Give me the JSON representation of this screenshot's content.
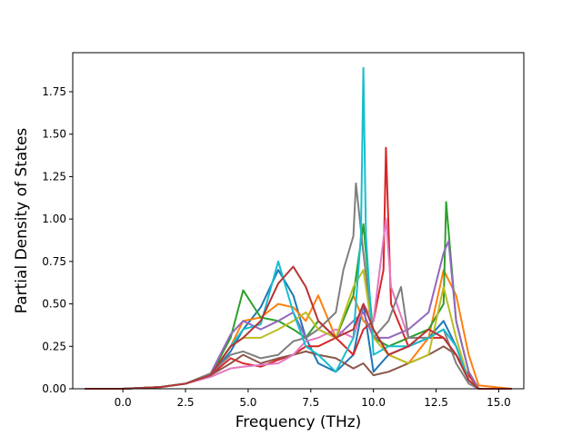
{
  "chart_data": {
    "type": "line",
    "title": "",
    "xlabel": "Frequency (THz)",
    "ylabel": "Partial Density of States",
    "xlim": [
      -2.0,
      16.0
    ],
    "ylim": [
      0.0,
      1.98
    ],
    "xticks": [
      0.0,
      2.5,
      5.0,
      7.5,
      10.0,
      12.5,
      15.0
    ],
    "xtick_labels": [
      "0.0",
      "2.5",
      "5.0",
      "7.5",
      "10.0",
      "12.5",
      "15.0"
    ],
    "yticks": [
      0.0,
      0.25,
      0.5,
      0.75,
      1.0,
      1.25,
      1.5,
      1.75
    ],
    "ytick_labels": [
      "0.00",
      "0.25",
      "0.50",
      "0.75",
      "1.00",
      "1.25",
      "1.50",
      "1.75"
    ],
    "grid": false,
    "legend": "none",
    "series": [
      {
        "color": "#1f77b4",
        "points": [
          [
            -1.5,
            0
          ],
          [
            0,
            0
          ],
          [
            1.5,
            0.01
          ],
          [
            2.5,
            0.03
          ],
          [
            3.5,
            0.08
          ],
          [
            4.3,
            0.22
          ],
          [
            4.8,
            0.35
          ],
          [
            5.5,
            0.48
          ],
          [
            6.2,
            0.7
          ],
          [
            6.8,
            0.55
          ],
          [
            7.3,
            0.3
          ],
          [
            7.8,
            0.15
          ],
          [
            8.5,
            0.1
          ],
          [
            9.2,
            0.2
          ],
          [
            9.6,
            0.5
          ],
          [
            10,
            0.1
          ],
          [
            10.6,
            0.2
          ],
          [
            11.4,
            0.25
          ],
          [
            12.2,
            0.3
          ],
          [
            12.8,
            0.4
          ],
          [
            13.3,
            0.25
          ],
          [
            13.8,
            0.05
          ],
          [
            14.2,
            0
          ],
          [
            15.5,
            0
          ]
        ]
      },
      {
        "color": "#ff7f0e",
        "points": [
          [
            -1.5,
            0
          ],
          [
            0,
            0
          ],
          [
            1.5,
            0.01
          ],
          [
            2.5,
            0.03
          ],
          [
            3.5,
            0.09
          ],
          [
            4.3,
            0.25
          ],
          [
            4.8,
            0.4
          ],
          [
            5.5,
            0.42
          ],
          [
            6.2,
            0.5
          ],
          [
            6.8,
            0.48
          ],
          [
            7.3,
            0.4
          ],
          [
            7.8,
            0.55
          ],
          [
            8.5,
            0.3
          ],
          [
            9.2,
            0.55
          ],
          [
            9.6,
            0.4
          ],
          [
            10,
            0.35
          ],
          [
            10.6,
            0.2
          ],
          [
            11.4,
            0.15
          ],
          [
            12.2,
            0.3
          ],
          [
            12.8,
            0.7
          ],
          [
            13.3,
            0.55
          ],
          [
            13.8,
            0.2
          ],
          [
            14.2,
            0.02
          ],
          [
            15.5,
            0
          ]
        ]
      },
      {
        "color": "#2ca02c",
        "points": [
          [
            -1.5,
            0
          ],
          [
            0,
            0
          ],
          [
            1.5,
            0.01
          ],
          [
            2.5,
            0.03
          ],
          [
            3.5,
            0.08
          ],
          [
            4.3,
            0.3
          ],
          [
            4.8,
            0.58
          ],
          [
            5.5,
            0.42
          ],
          [
            6.2,
            0.4
          ],
          [
            6.8,
            0.35
          ],
          [
            7.3,
            0.3
          ],
          [
            7.8,
            0.4
          ],
          [
            8.5,
            0.3
          ],
          [
            9.2,
            0.55
          ],
          [
            9.6,
            0.97
          ],
          [
            10,
            0.3
          ],
          [
            10.6,
            0.25
          ],
          [
            11.4,
            0.3
          ],
          [
            12.2,
            0.35
          ],
          [
            12.8,
            0.5
          ],
          [
            12.9,
            1.1
          ],
          [
            13.3,
            0.4
          ],
          [
            13.8,
            0.1
          ],
          [
            14.2,
            0
          ],
          [
            15.5,
            0
          ]
        ]
      },
      {
        "color": "#d62728",
        "points": [
          [
            -1.5,
            0
          ],
          [
            0,
            0
          ],
          [
            1.5,
            0.01
          ],
          [
            2.5,
            0.03
          ],
          [
            3.5,
            0.08
          ],
          [
            4.3,
            0.18
          ],
          [
            4.8,
            0.15
          ],
          [
            5.5,
            0.13
          ],
          [
            6.2,
            0.17
          ],
          [
            6.8,
            0.2
          ],
          [
            7.3,
            0.25
          ],
          [
            7.8,
            0.25
          ],
          [
            8.5,
            0.3
          ],
          [
            9.2,
            0.2
          ],
          [
            9.6,
            0.35
          ],
          [
            10,
            0.4
          ],
          [
            10.4,
            0.7
          ],
          [
            10.5,
            1.42
          ],
          [
            10.7,
            0.5
          ],
          [
            11.4,
            0.25
          ],
          [
            12.2,
            0.3
          ],
          [
            12.8,
            0.3
          ],
          [
            13.3,
            0.2
          ],
          [
            13.8,
            0.08
          ],
          [
            14.2,
            0
          ],
          [
            15.5,
            0
          ]
        ]
      },
      {
        "color": "#9467bd",
        "points": [
          [
            -1.5,
            0
          ],
          [
            0,
            0
          ],
          [
            1.5,
            0.01
          ],
          [
            2.5,
            0.03
          ],
          [
            3.5,
            0.09
          ],
          [
            4.3,
            0.32
          ],
          [
            4.8,
            0.4
          ],
          [
            5.5,
            0.35
          ],
          [
            6.2,
            0.4
          ],
          [
            6.8,
            0.45
          ],
          [
            7.3,
            0.3
          ],
          [
            7.8,
            0.35
          ],
          [
            8.5,
            0.3
          ],
          [
            9.2,
            0.4
          ],
          [
            9.6,
            0.45
          ],
          [
            10,
            0.3
          ],
          [
            10.6,
            0.3
          ],
          [
            11.4,
            0.35
          ],
          [
            12.2,
            0.45
          ],
          [
            12.8,
            0.8
          ],
          [
            13,
            0.87
          ],
          [
            13.3,
            0.4
          ],
          [
            13.8,
            0.1
          ],
          [
            14.2,
            0
          ],
          [
            15.5,
            0
          ]
        ]
      },
      {
        "color": "#8c564b",
        "points": [
          [
            -1.5,
            0
          ],
          [
            0,
            0
          ],
          [
            1.5,
            0.01
          ],
          [
            2.5,
            0.03
          ],
          [
            3.5,
            0.08
          ],
          [
            4.3,
            0.15
          ],
          [
            4.8,
            0.2
          ],
          [
            5.5,
            0.15
          ],
          [
            6.2,
            0.18
          ],
          [
            6.8,
            0.2
          ],
          [
            7.3,
            0.22
          ],
          [
            7.8,
            0.2
          ],
          [
            8.5,
            0.18
          ],
          [
            9.2,
            0.12
          ],
          [
            9.6,
            0.15
          ],
          [
            10,
            0.08
          ],
          [
            10.6,
            0.1
          ],
          [
            11.4,
            0.15
          ],
          [
            12.2,
            0.2
          ],
          [
            12.8,
            0.25
          ],
          [
            13.3,
            0.2
          ],
          [
            13.8,
            0.05
          ],
          [
            14.2,
            0
          ],
          [
            15.5,
            0
          ]
        ]
      },
      {
        "color": "#e377c2",
        "points": [
          [
            -1.5,
            0
          ],
          [
            0,
            0
          ],
          [
            1.5,
            0.01
          ],
          [
            2.5,
            0.03
          ],
          [
            3.5,
            0.07
          ],
          [
            4.3,
            0.12
          ],
          [
            4.8,
            0.13
          ],
          [
            5.5,
            0.14
          ],
          [
            6.2,
            0.15
          ],
          [
            6.8,
            0.2
          ],
          [
            7.3,
            0.28
          ],
          [
            7.8,
            0.3
          ],
          [
            8.5,
            0.35
          ],
          [
            9.2,
            0.3
          ],
          [
            9.6,
            0.5
          ],
          [
            10,
            0.4
          ],
          [
            10.5,
            1.0
          ],
          [
            10.7,
            0.6
          ],
          [
            11.4,
            0.3
          ],
          [
            12.2,
            0.3
          ],
          [
            12.8,
            0.35
          ],
          [
            13.3,
            0.25
          ],
          [
            13.8,
            0.05
          ],
          [
            14.2,
            0
          ],
          [
            15.5,
            0
          ]
        ]
      },
      {
        "color": "#7f7f7f",
        "points": [
          [
            -1.5,
            0
          ],
          [
            0,
            0
          ],
          [
            1.5,
            0.01
          ],
          [
            2.5,
            0.03
          ],
          [
            3.5,
            0.09
          ],
          [
            4.3,
            0.2
          ],
          [
            4.8,
            0.22
          ],
          [
            5.5,
            0.18
          ],
          [
            6.2,
            0.2
          ],
          [
            6.8,
            0.28
          ],
          [
            7.3,
            0.3
          ],
          [
            7.8,
            0.35
          ],
          [
            8.5,
            0.45
          ],
          [
            8.8,
            0.7
          ],
          [
            9.2,
            0.9
          ],
          [
            9.3,
            1.21
          ],
          [
            9.6,
            0.8
          ],
          [
            10,
            0.3
          ],
          [
            10.6,
            0.4
          ],
          [
            11.1,
            0.6
          ],
          [
            11.4,
            0.3
          ],
          [
            12.2,
            0.3
          ],
          [
            12.8,
            0.35
          ],
          [
            13.3,
            0.15
          ],
          [
            13.8,
            0.03
          ],
          [
            14.2,
            0
          ],
          [
            15.5,
            0
          ]
        ]
      },
      {
        "color": "#bcbd22",
        "points": [
          [
            -1.5,
            0
          ],
          [
            0,
            0
          ],
          [
            1.5,
            0.01
          ],
          [
            2.5,
            0.03
          ],
          [
            3.5,
            0.08
          ],
          [
            4.3,
            0.25
          ],
          [
            4.8,
            0.3
          ],
          [
            5.5,
            0.3
          ],
          [
            6.2,
            0.35
          ],
          [
            6.8,
            0.4
          ],
          [
            7.3,
            0.45
          ],
          [
            7.8,
            0.35
          ],
          [
            8.5,
            0.3
          ],
          [
            9.2,
            0.6
          ],
          [
            9.6,
            0.7
          ],
          [
            10,
            0.3
          ],
          [
            10.6,
            0.2
          ],
          [
            11.4,
            0.15
          ],
          [
            12.2,
            0.2
          ],
          [
            12.8,
            0.6
          ],
          [
            13.3,
            0.3
          ],
          [
            13.8,
            0.05
          ],
          [
            14.2,
            0
          ],
          [
            15.5,
            0
          ]
        ]
      },
      {
        "color": "#17becf",
        "points": [
          [
            -1.5,
            0
          ],
          [
            0,
            0
          ],
          [
            1.5,
            0.01
          ],
          [
            2.5,
            0.03
          ],
          [
            3.5,
            0.08
          ],
          [
            4.3,
            0.25
          ],
          [
            4.8,
            0.35
          ],
          [
            5.5,
            0.38
          ],
          [
            6.2,
            0.75
          ],
          [
            6.8,
            0.45
          ],
          [
            7.3,
            0.25
          ],
          [
            7.8,
            0.2
          ],
          [
            8.5,
            0.1
          ],
          [
            9.2,
            0.3
          ],
          [
            9.5,
            0.9
          ],
          [
            9.6,
            1.89
          ],
          [
            9.7,
            0.9
          ],
          [
            10,
            0.2
          ],
          [
            10.6,
            0.25
          ],
          [
            11.4,
            0.25
          ],
          [
            12.2,
            0.3
          ],
          [
            12.8,
            0.35
          ],
          [
            13.3,
            0.25
          ],
          [
            13.8,
            0.05
          ],
          [
            14.2,
            0
          ],
          [
            15.5,
            0
          ]
        ]
      },
      {
        "color": "#b73333",
        "points": [
          [
            -1.5,
            0
          ],
          [
            0,
            0
          ],
          [
            1.5,
            0.01
          ],
          [
            2.5,
            0.03
          ],
          [
            3.5,
            0.08
          ],
          [
            4.3,
            0.25
          ],
          [
            4.8,
            0.3
          ],
          [
            5.5,
            0.4
          ],
          [
            6.2,
            0.62
          ],
          [
            6.8,
            0.72
          ],
          [
            7.3,
            0.6
          ],
          [
            7.8,
            0.4
          ],
          [
            8.5,
            0.3
          ],
          [
            9.2,
            0.35
          ],
          [
            9.6,
            0.5
          ],
          [
            10,
            0.35
          ],
          [
            10.6,
            0.2
          ],
          [
            11.4,
            0.25
          ],
          [
            12.2,
            0.35
          ],
          [
            12.8,
            0.3
          ],
          [
            13.3,
            0.2
          ],
          [
            13.8,
            0.05
          ],
          [
            14.2,
            0
          ],
          [
            15.5,
            0
          ]
        ]
      }
    ]
  }
}
